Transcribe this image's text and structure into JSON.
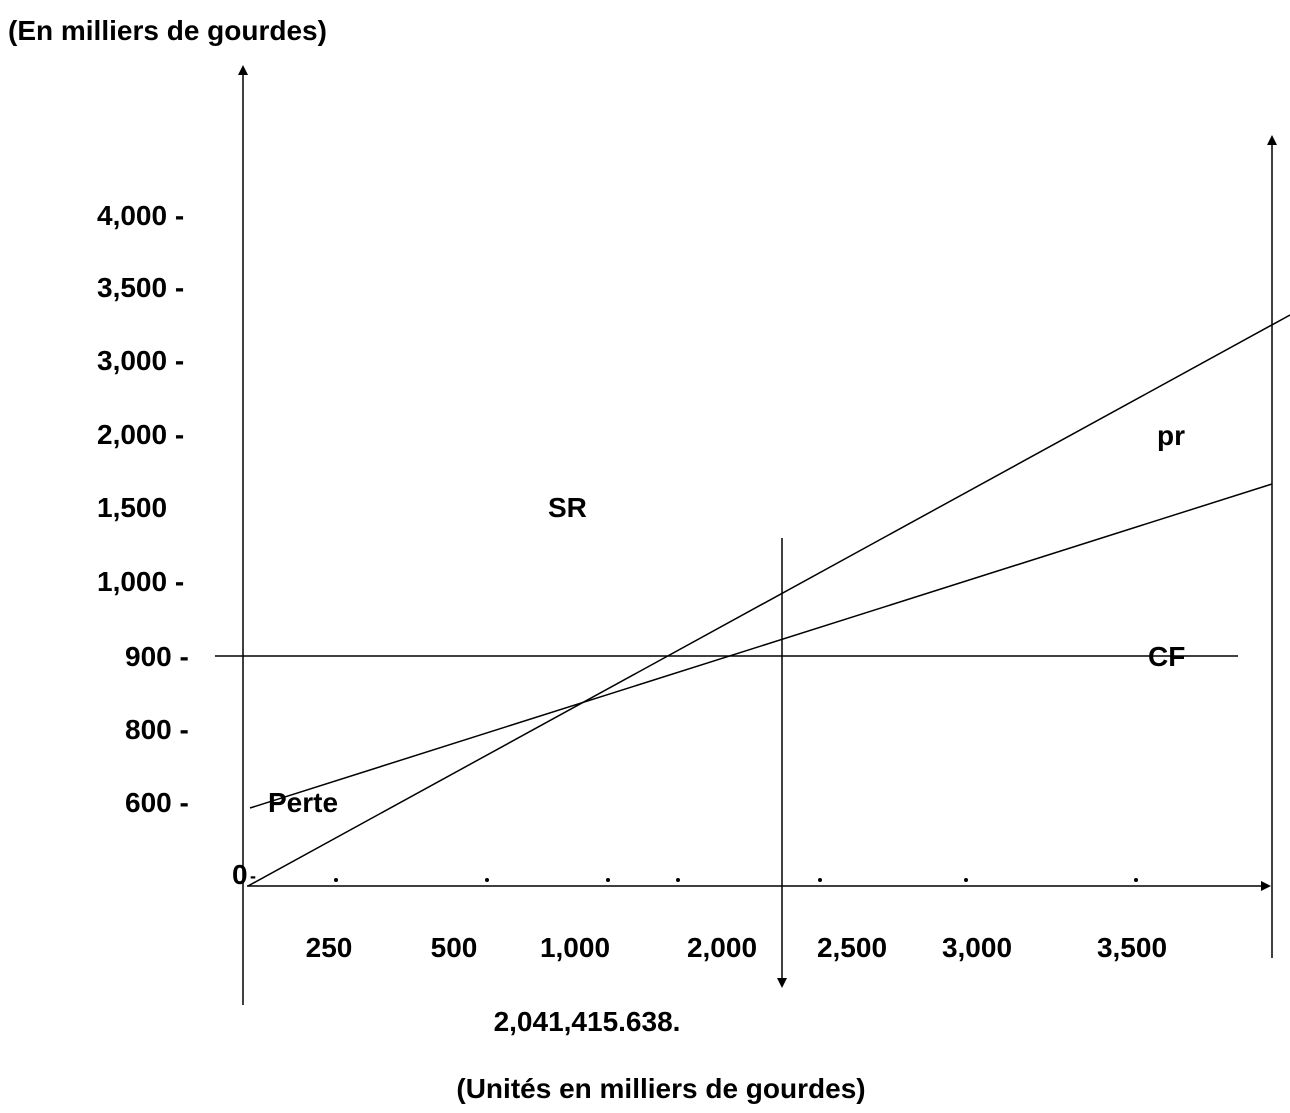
{
  "chart_data": {
    "type": "line",
    "title": "(En milliers de gourdes)",
    "xlabel": "(Unités en milliers de gourdes)",
    "ylabel": "(En milliers de gourdes)",
    "y_ticks": [
      "4,000 -",
      "3,500 -",
      "3,000 -",
      "2,000 -",
      "1,500",
      "1,000 -",
      "900 -",
      "800 -",
      "600 -",
      "0"
    ],
    "x_ticks": [
      "250",
      "500",
      "1,000",
      "2,000",
      "2,500",
      "3,000",
      "3,500"
    ],
    "break_even_label": "2,041,415.638.",
    "series": [
      {
        "name": "SR",
        "from": [
          0,
          0
        ],
        "to": [
          3500,
          3100
        ]
      },
      {
        "name": "pr",
        "from": [
          0,
          600
        ],
        "to": [
          3500,
          1500
        ]
      },
      {
        "name": "CF",
        "from": [
          0,
          900
        ],
        "to": [
          3500,
          900
        ]
      }
    ],
    "annotations": [
      "Perte",
      "SR",
      "pr",
      "CF"
    ],
    "grid": false,
    "legend": "none"
  }
}
